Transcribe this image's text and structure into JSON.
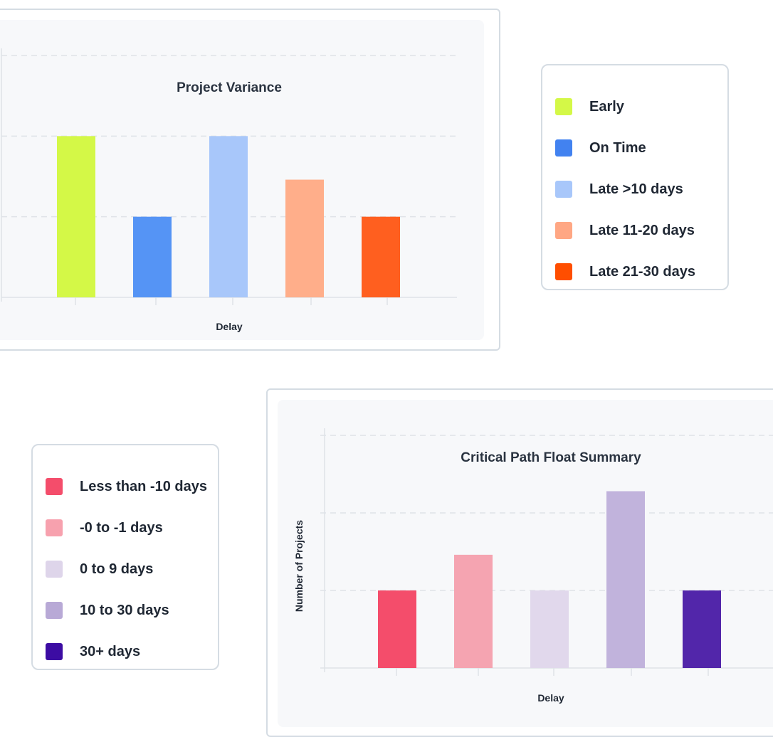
{
  "chart_data": [
    {
      "type": "bar",
      "title": "Project Variance",
      "xlabel": "Delay",
      "ylabel": "",
      "categories": [
        "Early",
        "On Time",
        "Late >10 days",
        "Late 11-20 days",
        "Late 21-30 days"
      ],
      "values": [
        2,
        1,
        2,
        1.46,
        1
      ],
      "colors": [
        "#d4f847",
        "#5594f5",
        "#a8c7fa",
        "#ffae8a",
        "#ff5f1f"
      ],
      "ylim": [
        0,
        3
      ],
      "grid": true,
      "legend": "right",
      "legend_colors": [
        "#d4f847",
        "#4282f0",
        "#a8c7fa",
        "#ffa784",
        "#ff4e00"
      ]
    },
    {
      "type": "bar",
      "title": "Critical Path Float Summary",
      "xlabel": "Delay",
      "ylabel": "Number of Projects",
      "categories": [
        "Less than -10 days",
        "-0 to -1 days",
        "0 to 9 days",
        "10 to 30 days",
        "30+ days"
      ],
      "values": [
        1,
        1.46,
        1,
        2.28,
        1
      ],
      "colors": [
        "#f44d6b",
        "#f5a4b1",
        "#e1d8ec",
        "#c1b3dc",
        "#5226aa"
      ],
      "ylim": [
        0,
        3
      ],
      "grid": true,
      "legend": "left",
      "legend_colors": [
        "#f44d6b",
        "#f7a1ae",
        "#ded5ea",
        "#b8a9d6",
        "#3c0ca3"
      ]
    }
  ]
}
